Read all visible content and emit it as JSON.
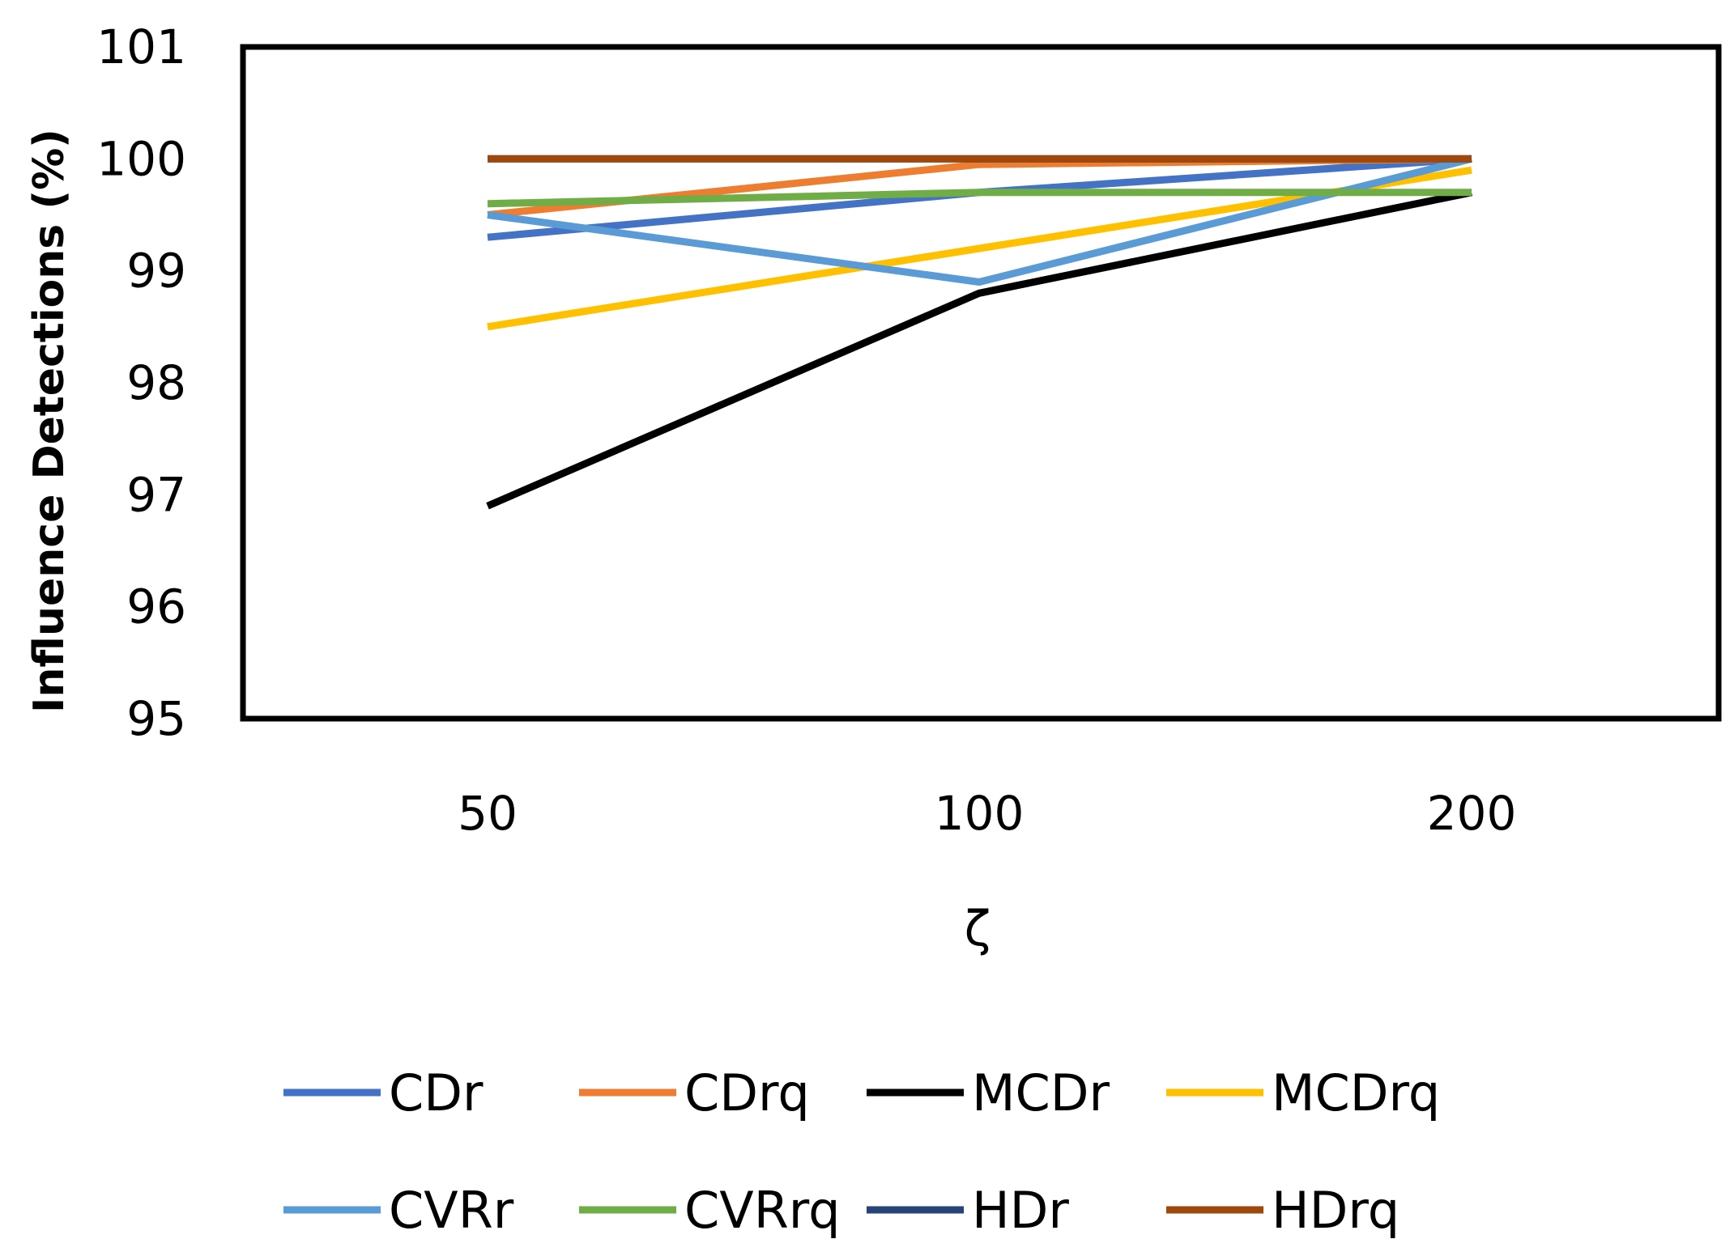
{
  "chart_data": {
    "type": "line",
    "xlabel": "ζ",
    "ylabel": "Influence Detections (%)",
    "categories": [
      "50",
      "100",
      "200"
    ],
    "ylim": [
      95,
      101
    ],
    "yticks": [
      "95",
      "96",
      "97",
      "98",
      "99",
      "100",
      "101"
    ],
    "legend_position": "bottom",
    "series": [
      {
        "name": "CDr",
        "color": "#4472C4",
        "values": [
          99.3,
          99.7,
          100.0
        ]
      },
      {
        "name": "CDrq",
        "color": "#ED7D31",
        "values": [
          99.5,
          99.95,
          100.0
        ]
      },
      {
        "name": "MCDr",
        "color": "#000000",
        "values": [
          96.9,
          98.8,
          99.7
        ]
      },
      {
        "name": "MCDrq",
        "color": "#FFC000",
        "values": [
          98.5,
          99.2,
          99.9
        ]
      },
      {
        "name": "CVRr",
        "color": "#5B9BD5",
        "values": [
          99.5,
          98.9,
          100.0
        ]
      },
      {
        "name": "CVRrq",
        "color": "#70AD47",
        "values": [
          99.6,
          99.7,
          99.7
        ]
      },
      {
        "name": "HDr",
        "color": "#264478",
        "values": [
          100.0,
          100.0,
          100.0
        ]
      },
      {
        "name": "HDrq",
        "color": "#9E480E",
        "values": [
          100.0,
          100.0,
          100.0
        ]
      }
    ]
  }
}
